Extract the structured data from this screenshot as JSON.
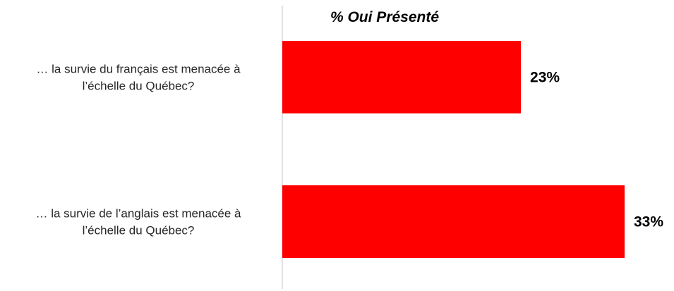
{
  "chart_data": {
    "type": "bar",
    "orientation": "horizontal",
    "title": "% Oui Présenté",
    "categories": [
      [
        "… la survie du français est menacée à",
        "l’échelle du Québec?"
      ],
      [
        "… la survie de l’anglais est menacée à",
        "l’échelle du Québec?"
      ]
    ],
    "values": [
      23,
      33
    ],
    "value_labels": [
      "23%",
      "33%"
    ],
    "xlim": [
      0,
      33
    ],
    "bar_color": "#ff0000",
    "axis_color": "#d9d9d9",
    "grid": false,
    "legend": "none"
  }
}
